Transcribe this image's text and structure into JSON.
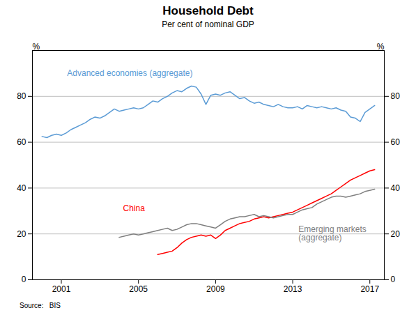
{
  "chart_data": {
    "type": "line",
    "title": "Household Debt",
    "subtitle": "Per cent of nominal GDP",
    "source": "Source:   BIS",
    "ylabel": "%",
    "y2label": "%",
    "x": [
      2000.0,
      2000.25,
      2000.5,
      2000.75,
      2001.0,
      2001.25,
      2001.5,
      2001.75,
      2002.0,
      2002.25,
      2002.5,
      2002.75,
      2003.0,
      2003.25,
      2003.5,
      2003.75,
      2004.0,
      2004.25,
      2004.5,
      2004.75,
      2005.0,
      2005.25,
      2005.5,
      2005.75,
      2006.0,
      2006.25,
      2006.5,
      2006.75,
      2007.0,
      2007.25,
      2007.5,
      2007.75,
      2008.0,
      2008.25,
      2008.5,
      2008.75,
      2009.0,
      2009.25,
      2009.5,
      2009.75,
      2010.0,
      2010.25,
      2010.5,
      2010.75,
      2011.0,
      2011.25,
      2011.5,
      2011.75,
      2012.0,
      2012.25,
      2012.5,
      2012.75,
      2013.0,
      2013.25,
      2013.5,
      2013.75,
      2014.0,
      2014.25,
      2014.5,
      2014.75,
      2015.0,
      2015.25,
      2015.5,
      2015.75,
      2016.0,
      2016.25,
      2016.5,
      2016.75,
      2017.0,
      2017.25
    ],
    "series": [
      {
        "name": "Advanced economies (aggregate)",
        "color": "#5B9BD5",
        "values": [
          62.5,
          62.0,
          63.0,
          63.5,
          63.0,
          64.0,
          65.5,
          66.5,
          67.5,
          68.5,
          70.0,
          71.0,
          70.5,
          71.5,
          73.0,
          74.5,
          73.5,
          74.0,
          74.5,
          75.0,
          74.5,
          75.0,
          76.5,
          78.0,
          77.5,
          79.0,
          80.0,
          81.5,
          82.5,
          82.0,
          83.5,
          84.5,
          84.0,
          81.0,
          76.5,
          80.5,
          81.0,
          80.5,
          81.5,
          82.0,
          80.5,
          79.0,
          79.5,
          78.0,
          77.0,
          77.5,
          76.5,
          76.0,
          75.5,
          76.5,
          75.5,
          75.0,
          75.0,
          75.5,
          74.5,
          76.0,
          75.5,
          75.0,
          75.5,
          75.0,
          74.5,
          75.0,
          74.0,
          73.5,
          71.0,
          70.5,
          69.0,
          73.0,
          74.5,
          76.0
        ]
      },
      {
        "name": "China",
        "color": "#FF0000",
        "values": [
          null,
          null,
          null,
          null,
          null,
          null,
          null,
          null,
          null,
          null,
          null,
          null,
          null,
          null,
          null,
          null,
          null,
          null,
          null,
          null,
          null,
          null,
          null,
          null,
          11.0,
          11.5,
          12.0,
          12.5,
          14.0,
          16.0,
          17.5,
          18.5,
          19.0,
          19.5,
          19.0,
          19.5,
          18.0,
          19.5,
          21.5,
          22.5,
          23.5,
          24.5,
          25.0,
          25.5,
          26.5,
          27.0,
          27.5,
          27.0,
          27.5,
          28.0,
          28.5,
          29.0,
          29.5,
          30.5,
          31.5,
          32.5,
          33.5,
          34.5,
          35.5,
          36.5,
          37.5,
          39.0,
          40.5,
          42.0,
          43.5,
          44.5,
          45.5,
          46.5,
          47.5,
          48.0
        ]
      },
      {
        "name": "Emerging markets\n(aggregate)",
        "color": "#7F7F7F",
        "values": [
          null,
          null,
          null,
          null,
          null,
          null,
          null,
          null,
          null,
          null,
          null,
          null,
          null,
          null,
          null,
          null,
          18.5,
          19.0,
          19.5,
          20.0,
          19.5,
          20.0,
          20.5,
          21.0,
          21.5,
          22.0,
          22.5,
          21.5,
          22.0,
          23.0,
          24.0,
          24.5,
          24.5,
          24.0,
          23.5,
          23.0,
          22.5,
          24.0,
          25.5,
          26.5,
          27.0,
          27.5,
          27.5,
          28.0,
          28.5,
          27.5,
          28.0,
          27.5,
          27.0,
          27.5,
          28.0,
          28.5,
          28.5,
          29.5,
          30.5,
          31.0,
          31.5,
          33.0,
          34.0,
          35.0,
          36.0,
          36.5,
          36.5,
          36.0,
          36.5,
          37.0,
          37.5,
          38.5,
          39.0,
          39.5
        ]
      }
    ],
    "annotations": [
      {
        "text": "Advanced economies (aggregate)",
        "x": 2001.3,
        "y": 90,
        "color": "#5B9BD5"
      },
      {
        "text": "China",
        "x": 2004.2,
        "y": 30,
        "color": "#FF0000"
      },
      {
        "text": "Emerging markets\n(aggregate)",
        "x": 2013.3,
        "y": 23.5,
        "color": "#7F7F7F"
      }
    ],
    "xlim": [
      1999.5,
      2017.75
    ],
    "xticks": [
      2001,
      2005,
      2009,
      2013,
      2017
    ],
    "ylim": [
      0,
      100
    ],
    "yticks": [
      0,
      20,
      40,
      60,
      80
    ],
    "grid": "y"
  }
}
